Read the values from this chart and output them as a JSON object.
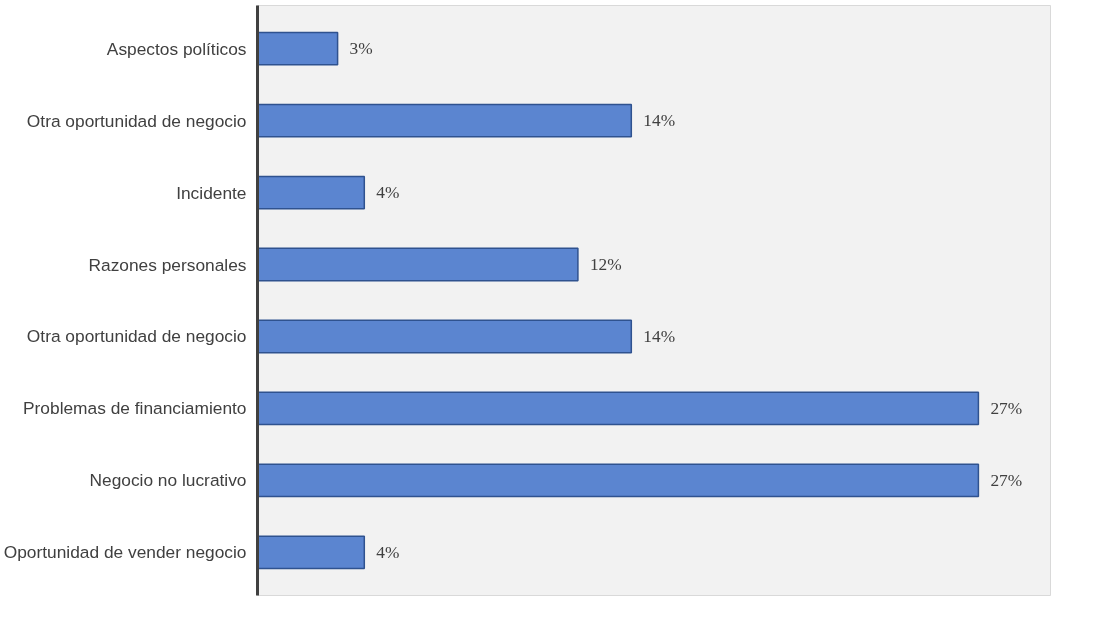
{
  "chart_data": {
    "type": "bar",
    "orientation": "horizontal",
    "categories": [
      "Aspectos políticos",
      "Otra oportunidad de negocio",
      "Incidente",
      "Razones personales",
      "Otra oportunidad de negocio",
      "Problemas de financiamiento",
      "Negocio no lucrativo",
      "Oportunidad de vender negocio"
    ],
    "values": [
      3,
      14,
      4,
      12,
      14,
      27,
      27,
      4
    ],
    "value_labels": [
      "3%",
      "14%",
      "4%",
      "12%",
      "14%",
      "27%",
      "27%",
      "4%"
    ],
    "color": "#5b85d0",
    "grid": false
  }
}
